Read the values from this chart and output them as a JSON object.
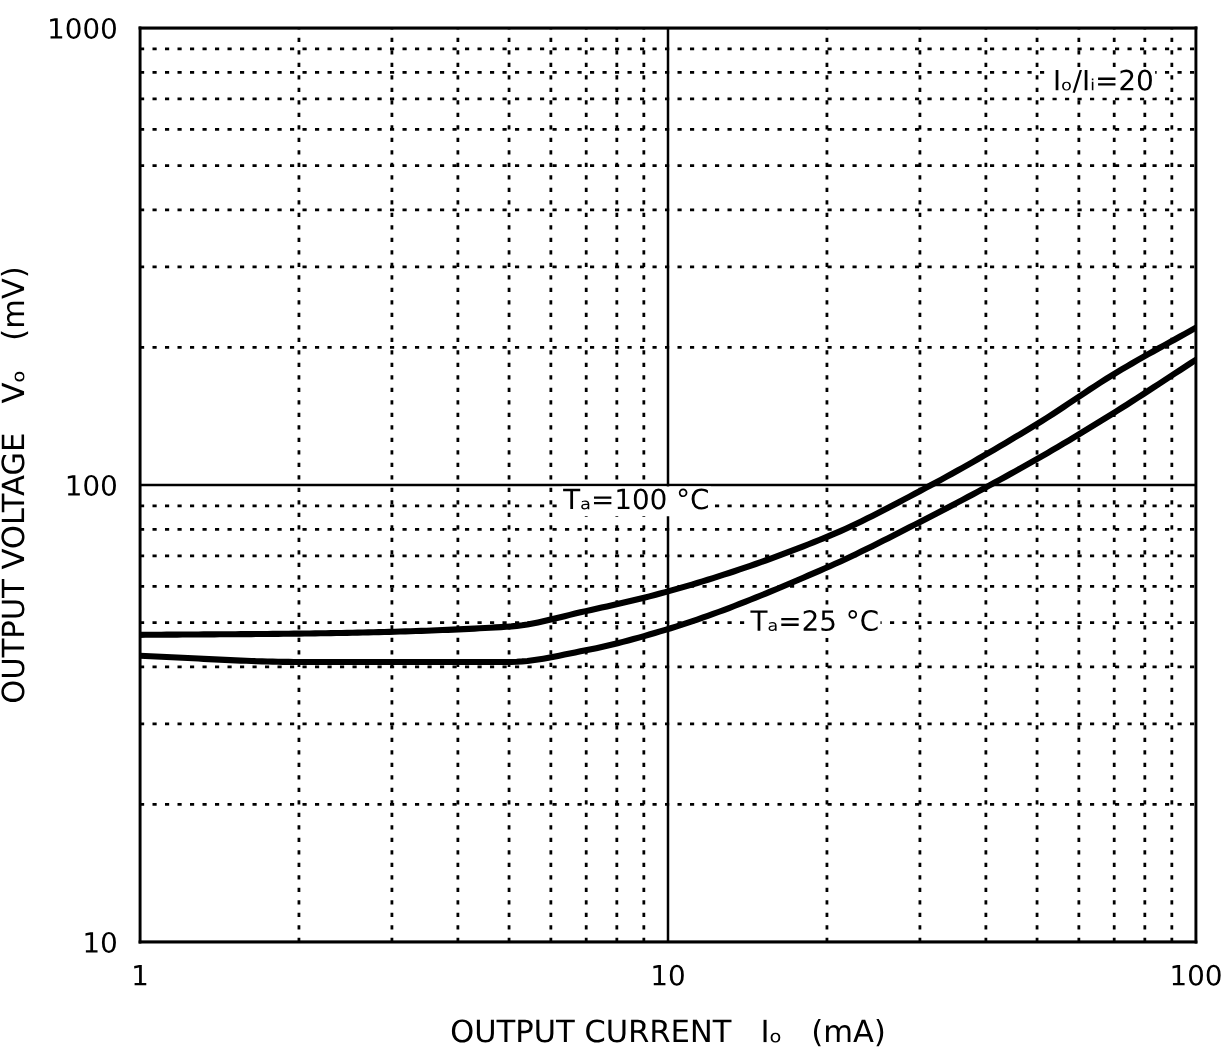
{
  "chart_data": {
    "type": "line",
    "xlabel": "OUTPUT CURRENT   Iₒ   (mA)",
    "ylabel": "OUTPUT VOLTAGE   Vₒ   (mV)",
    "log": "xy",
    "xlim": [
      1,
      100
    ],
    "ylim": [
      10,
      1000
    ],
    "xticks": [
      1,
      {
        "value": 2,
        "label": null
      },
      {
        "value": 3,
        "label": null
      },
      {
        "value": 4,
        "label": null
      },
      {
        "value": 5,
        "label": null
      },
      {
        "value": 6,
        "label": null
      },
      {
        "value": 7,
        "label": null
      },
      {
        "value": 8,
        "label": null
      },
      {
        "value": 9,
        "label": null
      },
      10,
      {
        "value": 20,
        "label": null
      },
      {
        "value": 30,
        "label": null
      },
      {
        "value": 40,
        "label": null
      },
      {
        "value": 50,
        "label": null
      },
      {
        "value": 60,
        "label": null
      },
      {
        "value": 70,
        "label": null
      },
      {
        "value": 80,
        "label": null
      },
      {
        "value": 90,
        "label": null
      },
      100
    ],
    "yticks": [
      10,
      {
        "value": 20,
        "label": null
      },
      {
        "value": 30,
        "label": null
      },
      {
        "value": 40,
        "label": null
      },
      {
        "value": 50,
        "label": null
      },
      {
        "value": 60,
        "label": null
      },
      {
        "value": 70,
        "label": null
      },
      {
        "value": 80,
        "label": null
      },
      {
        "value": 90,
        "label": null
      },
      100,
      {
        "value": 200,
        "label": null
      },
      {
        "value": 300,
        "label": null
      },
      {
        "value": 400,
        "label": null
      },
      {
        "value": 500,
        "label": null
      },
      {
        "value": 600,
        "label": null
      },
      {
        "value": 700,
        "label": null
      },
      {
        "value": 800,
        "label": null
      },
      {
        "value": 900,
        "label": null
      },
      1000
    ],
    "grid": true,
    "marker": "none",
    "line_style": "solid",
    "x": [
      1,
      2,
      5,
      7,
      10,
      20,
      30,
      50,
      70,
      100
    ],
    "series": [
      {
        "color": "#000000",
        "values": [
          47,
          47.3,
          49,
          53,
          58.5,
          77,
          97,
          136,
          175,
          221
        ]
      },
      {
        "color": "#000000",
        "values": [
          42.3,
          41,
          41,
          43.5,
          48.4,
          66,
          83,
          114,
          144,
          188
        ]
      }
    ],
    "annotations": [
      "Iₒ/Iᵢ=20",
      "Tₐ=100 °C",
      "Tₐ=25 °C"
    ]
  }
}
